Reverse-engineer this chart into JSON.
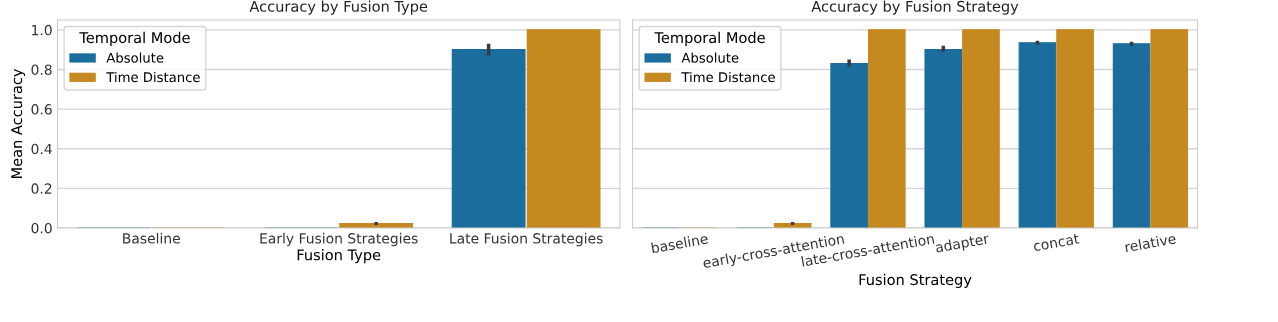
{
  "chart_data": [
    {
      "type": "bar",
      "title": "Accuracy by Fusion Type",
      "xlabel": "Fusion Type",
      "ylabel": "Mean Accuracy",
      "legend_title": "Temporal Mode",
      "categories": [
        "Baseline",
        "Early Fusion Strategies",
        "Late Fusion Strategies"
      ],
      "series": [
        {
          "name": "Absolute",
          "color": "#1a6d9c",
          "values": [
            0,
            0,
            0.9
          ],
          "errors": [
            null,
            null,
            [
              0.87,
              0.93
            ]
          ]
        },
        {
          "name": "Time Distance",
          "color": "#c5891f",
          "values": [
            0,
            0.022,
            1.0
          ],
          "errors": [
            null,
            [
              0.015,
              0.03
            ],
            null
          ]
        }
      ],
      "ylim": [
        0,
        1.05
      ],
      "yticks": [
        {
          "value": 0,
          "label": "0.0"
        },
        0.2,
        0.4,
        0.6,
        0.8,
        {
          "value": 1,
          "label": "1.0"
        }
      ],
      "grid": "y",
      "legend": "top left"
    },
    {
      "type": "bar",
      "title": "Accuracy by Fusion Strategy",
      "xlabel": "Fusion Strategy",
      "legend_title": "Temporal Mode",
      "categories": [
        "baseline",
        "early-cross-attention",
        "late-cross-attention",
        "adapter",
        "concat",
        "relative"
      ],
      "series": [
        {
          "name": "Absolute",
          "color": "#1a6d9c",
          "values": [
            0,
            0,
            0.83,
            0.9,
            0.935,
            0.93
          ],
          "errors": [
            null,
            null,
            [
              0.815,
              0.85
            ],
            [
              0.89,
              0.92
            ],
            [
              0.925,
              0.945
            ],
            [
              0.92,
              0.94
            ]
          ]
        },
        {
          "name": "Time Distance",
          "color": "#c5891f",
          "values": [
            0,
            0.022,
            1.0,
            1.0,
            1.0,
            1.0
          ],
          "errors": [
            null,
            [
              0.015,
              0.03
            ],
            null,
            null,
            null,
            null
          ]
        }
      ],
      "ylim": [
        0,
        1.05
      ],
      "yticks": [
        {
          "value": 0,
          "label": null
        },
        {
          "value": 0.2,
          "label": null
        },
        {
          "value": 0.4,
          "label": null
        },
        {
          "value": 0.6,
          "label": null
        },
        {
          "value": 0.8,
          "label": null
        },
        {
          "value": 1,
          "label": null
        }
      ],
      "tick_labels": "x",
      "grid": "y",
      "legend": "top left"
    }
  ]
}
